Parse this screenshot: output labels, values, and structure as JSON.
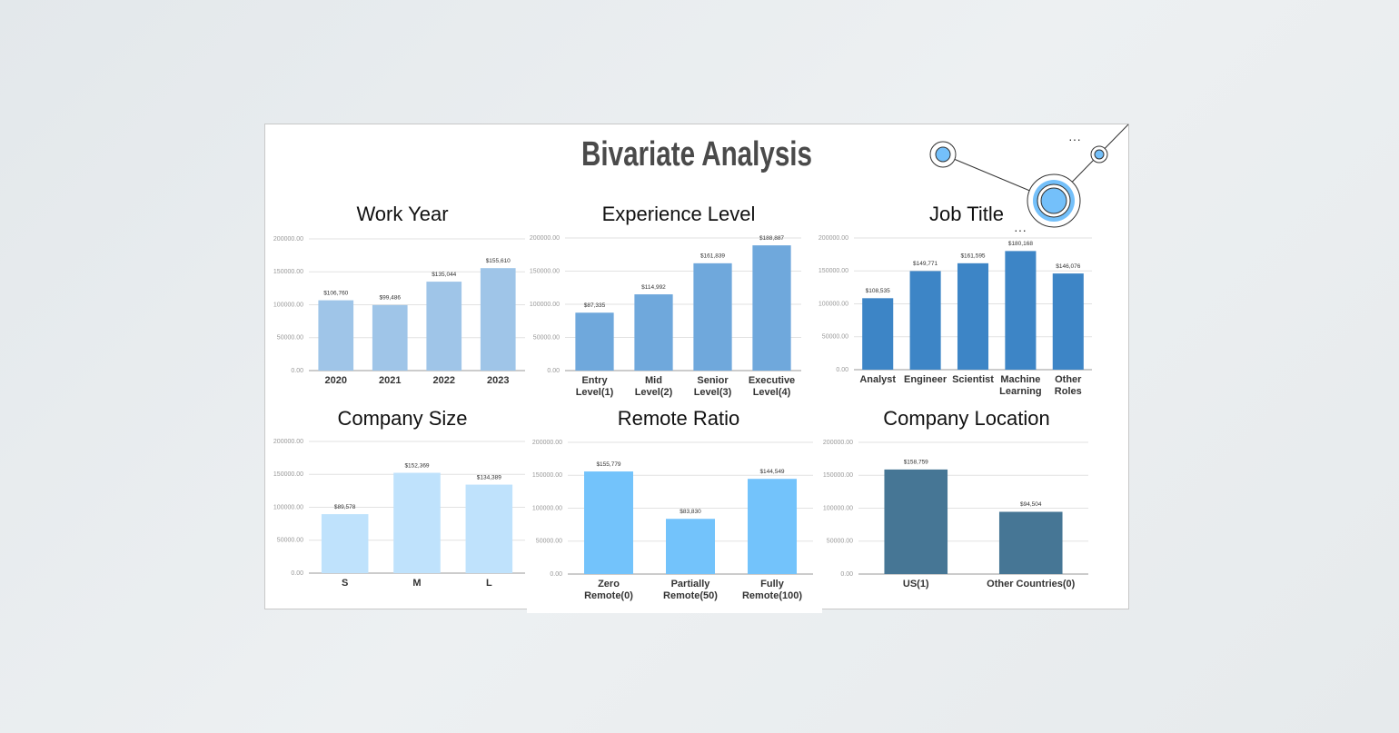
{
  "title": "Bivariate Analysis",
  "chart_data": [
    {
      "type": "bar",
      "title": "Work Year",
      "categories": [
        "2020",
        "2021",
        "2022",
        "2023"
      ],
      "values": [
        106760,
        99486,
        135044,
        155610
      ],
      "value_labels": [
        "$106,760",
        "$99,486",
        "$135,044",
        "$155,610"
      ],
      "color": "#9fc5e8",
      "ylim": [
        0,
        200000
      ],
      "yticks": [
        {
          "value": 0,
          "label": "0.00"
        },
        {
          "value": 50000,
          "label": "50000.00"
        },
        {
          "value": 100000,
          "label": "100000.00"
        },
        {
          "value": 150000,
          "label": "150000.00"
        },
        {
          "value": 200000,
          "label": "200000.00"
        }
      ],
      "grid": true
    },
    {
      "type": "bar",
      "title": "Experience Level",
      "categories": [
        "Entry Level(1)",
        "Mid Level(2)",
        "Senior Level(3)",
        "Executive Level(4)"
      ],
      "values": [
        87335,
        114992,
        161839,
        188887
      ],
      "value_labels": [
        "$87,335",
        "$114,992",
        "$161,839",
        "$188,887"
      ],
      "color": "#6fa8dc",
      "ylim": [
        0,
        200000
      ],
      "yticks": [
        {
          "value": 0,
          "label": "0.00"
        },
        {
          "value": 50000,
          "label": "50000.00"
        },
        {
          "value": 100000,
          "label": "100000.00"
        },
        {
          "value": 150000,
          "label": "150000.00"
        },
        {
          "value": 200000,
          "label": "200000.00"
        }
      ],
      "grid": true
    },
    {
      "type": "bar",
      "title": "Job Title",
      "categories": [
        "Analyst",
        "Engineer",
        "Scientist",
        "Machine Learning",
        "Other Roles"
      ],
      "values": [
        108535,
        149771,
        161595,
        180168,
        146076
      ],
      "value_labels": [
        "$108,535",
        "$149,771",
        "$161,595",
        "$180,168",
        "$146,076"
      ],
      "color": "#3d85c6",
      "ylim": [
        0,
        200000
      ],
      "yticks": [
        {
          "value": 0,
          "label": "0.00"
        },
        {
          "value": 50000,
          "label": "50000.00"
        },
        {
          "value": 100000,
          "label": "100000.00"
        },
        {
          "value": 150000,
          "label": "150000.00"
        },
        {
          "value": 200000,
          "label": "200000.00"
        }
      ],
      "grid": true
    },
    {
      "type": "bar",
      "title": "Company Size",
      "categories": [
        "S",
        "M",
        "L"
      ],
      "values": [
        89578,
        152369,
        134389
      ],
      "value_labels": [
        "$89,578",
        "$152,369",
        "$134,389"
      ],
      "color": "#bfe2fc",
      "ylim": [
        0,
        200000
      ],
      "yticks": [
        {
          "value": 0,
          "label": "0.00"
        },
        {
          "value": 50000,
          "label": "50000.00"
        },
        {
          "value": 100000,
          "label": "100000.00"
        },
        {
          "value": 150000,
          "label": "150000.00"
        },
        {
          "value": 200000,
          "label": "200000.00"
        }
      ],
      "grid": true
    },
    {
      "type": "bar",
      "title": "Remote Ratio",
      "categories": [
        "Zero Remote(0)",
        "Partially Remote(50)",
        "Fully Remote(100)"
      ],
      "values": [
        155779,
        83830,
        144549
      ],
      "value_labels": [
        "$155,779",
        "$83,830",
        "$144,549"
      ],
      "color": "#73c3fb",
      "ylim": [
        0,
        200000
      ],
      "yticks": [
        {
          "value": 0,
          "label": "0.00"
        },
        {
          "value": 50000,
          "label": "50000.00"
        },
        {
          "value": 100000,
          "label": "100000.00"
        },
        {
          "value": 150000,
          "label": "150000.00"
        },
        {
          "value": 200000,
          "label": "200000.00"
        }
      ],
      "grid": true
    },
    {
      "type": "bar",
      "title": "Company Location",
      "categories": [
        "US(1)",
        "Other Countries(0)"
      ],
      "values": [
        158759,
        94504
      ],
      "value_labels": [
        "$158,759",
        "$94,504"
      ],
      "color": "#467695",
      "ylim": [
        0,
        200000
      ],
      "yticks": [
        {
          "value": 0,
          "label": "0.00"
        },
        {
          "value": 50000,
          "label": "50000.00"
        },
        {
          "value": 100000,
          "label": "100000.00"
        },
        {
          "value": 150000,
          "label": "150000.00"
        },
        {
          "value": 200000,
          "label": "200000.00"
        }
      ],
      "grid": true
    }
  ]
}
